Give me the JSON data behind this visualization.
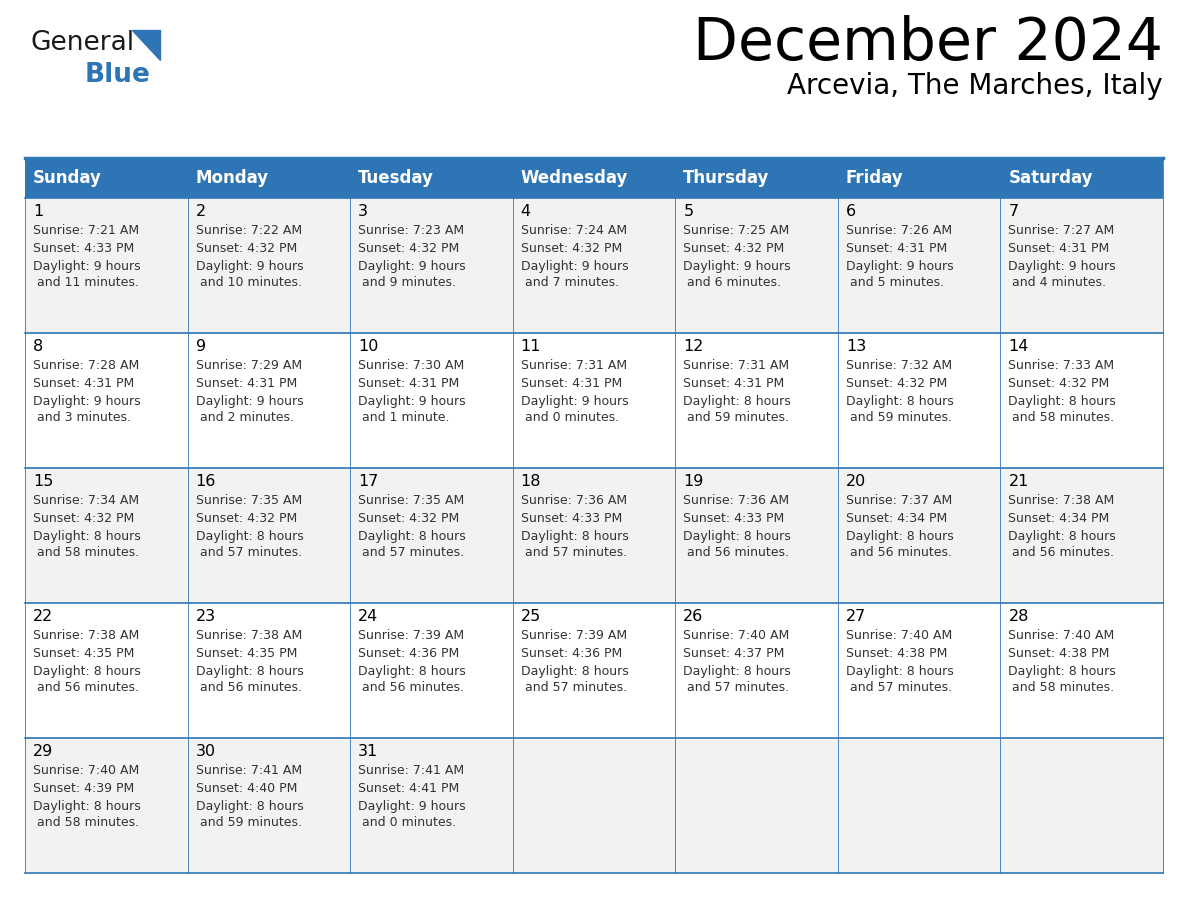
{
  "title": "December 2024",
  "subtitle": "Arcevia, The Marches, Italy",
  "days_of_week": [
    "Sunday",
    "Monday",
    "Tuesday",
    "Wednesday",
    "Thursday",
    "Friday",
    "Saturday"
  ],
  "header_bg": "#2E75B6",
  "header_text": "#FFFFFF",
  "cell_bg_even": "#F2F2F2",
  "cell_bg_odd": "#FFFFFF",
  "cell_text": "#333333",
  "day_num_color": "#000000",
  "grid_color": "#2E75B6",
  "logo_general_color": "#1a1a1a",
  "logo_blue_color": "#2E75B6",
  "logo_triangle_color": "#2E75B6",
  "days": [
    {
      "day": 1,
      "col": 0,
      "row": 0,
      "sunrise": "7:21 AM",
      "sunset": "4:33 PM",
      "daylight": "9 hours and 11 minutes."
    },
    {
      "day": 2,
      "col": 1,
      "row": 0,
      "sunrise": "7:22 AM",
      "sunset": "4:32 PM",
      "daylight": "9 hours and 10 minutes."
    },
    {
      "day": 3,
      "col": 2,
      "row": 0,
      "sunrise": "7:23 AM",
      "sunset": "4:32 PM",
      "daylight": "9 hours and 9 minutes."
    },
    {
      "day": 4,
      "col": 3,
      "row": 0,
      "sunrise": "7:24 AM",
      "sunset": "4:32 PM",
      "daylight": "9 hours and 7 minutes."
    },
    {
      "day": 5,
      "col": 4,
      "row": 0,
      "sunrise": "7:25 AM",
      "sunset": "4:32 PM",
      "daylight": "9 hours and 6 minutes."
    },
    {
      "day": 6,
      "col": 5,
      "row": 0,
      "sunrise": "7:26 AM",
      "sunset": "4:31 PM",
      "daylight": "9 hours and 5 minutes."
    },
    {
      "day": 7,
      "col": 6,
      "row": 0,
      "sunrise": "7:27 AM",
      "sunset": "4:31 PM",
      "daylight": "9 hours and 4 minutes."
    },
    {
      "day": 8,
      "col": 0,
      "row": 1,
      "sunrise": "7:28 AM",
      "sunset": "4:31 PM",
      "daylight": "9 hours and 3 minutes."
    },
    {
      "day": 9,
      "col": 1,
      "row": 1,
      "sunrise": "7:29 AM",
      "sunset": "4:31 PM",
      "daylight": "9 hours and 2 minutes."
    },
    {
      "day": 10,
      "col": 2,
      "row": 1,
      "sunrise": "7:30 AM",
      "sunset": "4:31 PM",
      "daylight": "9 hours and 1 minute."
    },
    {
      "day": 11,
      "col": 3,
      "row": 1,
      "sunrise": "7:31 AM",
      "sunset": "4:31 PM",
      "daylight": "9 hours and 0 minutes."
    },
    {
      "day": 12,
      "col": 4,
      "row": 1,
      "sunrise": "7:31 AM",
      "sunset": "4:31 PM",
      "daylight": "8 hours and 59 minutes."
    },
    {
      "day": 13,
      "col": 5,
      "row": 1,
      "sunrise": "7:32 AM",
      "sunset": "4:32 PM",
      "daylight": "8 hours and 59 minutes."
    },
    {
      "day": 14,
      "col": 6,
      "row": 1,
      "sunrise": "7:33 AM",
      "sunset": "4:32 PM",
      "daylight": "8 hours and 58 minutes."
    },
    {
      "day": 15,
      "col": 0,
      "row": 2,
      "sunrise": "7:34 AM",
      "sunset": "4:32 PM",
      "daylight": "8 hours and 58 minutes."
    },
    {
      "day": 16,
      "col": 1,
      "row": 2,
      "sunrise": "7:35 AM",
      "sunset": "4:32 PM",
      "daylight": "8 hours and 57 minutes."
    },
    {
      "day": 17,
      "col": 2,
      "row": 2,
      "sunrise": "7:35 AM",
      "sunset": "4:32 PM",
      "daylight": "8 hours and 57 minutes."
    },
    {
      "day": 18,
      "col": 3,
      "row": 2,
      "sunrise": "7:36 AM",
      "sunset": "4:33 PM",
      "daylight": "8 hours and 57 minutes."
    },
    {
      "day": 19,
      "col": 4,
      "row": 2,
      "sunrise": "7:36 AM",
      "sunset": "4:33 PM",
      "daylight": "8 hours and 56 minutes."
    },
    {
      "day": 20,
      "col": 5,
      "row": 2,
      "sunrise": "7:37 AM",
      "sunset": "4:34 PM",
      "daylight": "8 hours and 56 minutes."
    },
    {
      "day": 21,
      "col": 6,
      "row": 2,
      "sunrise": "7:38 AM",
      "sunset": "4:34 PM",
      "daylight": "8 hours and 56 minutes."
    },
    {
      "day": 22,
      "col": 0,
      "row": 3,
      "sunrise": "7:38 AM",
      "sunset": "4:35 PM",
      "daylight": "8 hours and 56 minutes."
    },
    {
      "day": 23,
      "col": 1,
      "row": 3,
      "sunrise": "7:38 AM",
      "sunset": "4:35 PM",
      "daylight": "8 hours and 56 minutes."
    },
    {
      "day": 24,
      "col": 2,
      "row": 3,
      "sunrise": "7:39 AM",
      "sunset": "4:36 PM",
      "daylight": "8 hours and 56 minutes."
    },
    {
      "day": 25,
      "col": 3,
      "row": 3,
      "sunrise": "7:39 AM",
      "sunset": "4:36 PM",
      "daylight": "8 hours and 57 minutes."
    },
    {
      "day": 26,
      "col": 4,
      "row": 3,
      "sunrise": "7:40 AM",
      "sunset": "4:37 PM",
      "daylight": "8 hours and 57 minutes."
    },
    {
      "day": 27,
      "col": 5,
      "row": 3,
      "sunrise": "7:40 AM",
      "sunset": "4:38 PM",
      "daylight": "8 hours and 57 minutes."
    },
    {
      "day": 28,
      "col": 6,
      "row": 3,
      "sunrise": "7:40 AM",
      "sunset": "4:38 PM",
      "daylight": "8 hours and 58 minutes."
    },
    {
      "day": 29,
      "col": 0,
      "row": 4,
      "sunrise": "7:40 AM",
      "sunset": "4:39 PM",
      "daylight": "8 hours and 58 minutes."
    },
    {
      "day": 30,
      "col": 1,
      "row": 4,
      "sunrise": "7:41 AM",
      "sunset": "4:40 PM",
      "daylight": "8 hours and 59 minutes."
    },
    {
      "day": 31,
      "col": 2,
      "row": 4,
      "sunrise": "7:41 AM",
      "sunset": "4:41 PM",
      "daylight": "9 hours and 0 minutes."
    }
  ]
}
